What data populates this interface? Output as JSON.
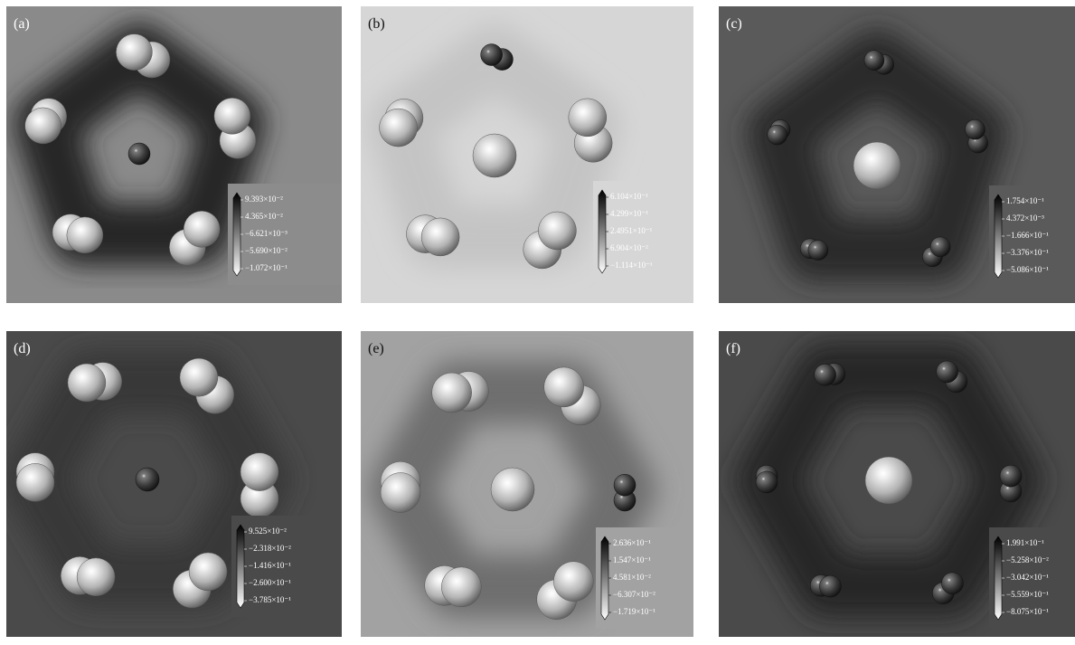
{
  "panels": [
    {
      "label": "(a)",
      "colorbar": [
        "9.393×10⁻²",
        "4.365×10⁻²",
        "−6.621×10⁻³",
        "−5.690×10⁻²",
        "−1.072×10⁻¹"
      ]
    },
    {
      "label": "(b)",
      "colorbar": [
        "6.104×10⁻¹",
        "4.299×10⁻¹",
        "2.4951×10⁻¹",
        "6.904×10⁻²",
        "−1.114×10⁻¹"
      ]
    },
    {
      "label": "(c)",
      "colorbar": [
        "1.754×10⁻¹",
        "4.372×10⁻³",
        "−1.666×10⁻¹",
        "−3.376×10⁻¹",
        "−5.086×10⁻¹"
      ]
    },
    {
      "label": "(d)",
      "colorbar": [
        "9.525×10⁻²",
        "−2.318×10⁻²",
        "−1.416×10⁻¹",
        "−2.600×10⁻¹",
        "−3.785×10⁻¹"
      ]
    },
    {
      "label": "(e)",
      "colorbar": [
        "2.636×10⁻¹",
        "1.547×10⁻¹",
        "4.581×10⁻²",
        "−6.307×10⁻²",
        "−1.719×10⁻¹"
      ]
    },
    {
      "label": "(f)",
      "colorbar": [
        "1.991×10⁻¹",
        "−5.258×10⁻²",
        "−3.042×10⁻¹",
        "−5.559×10⁻¹",
        "−8.075×10⁻¹"
      ]
    }
  ]
}
